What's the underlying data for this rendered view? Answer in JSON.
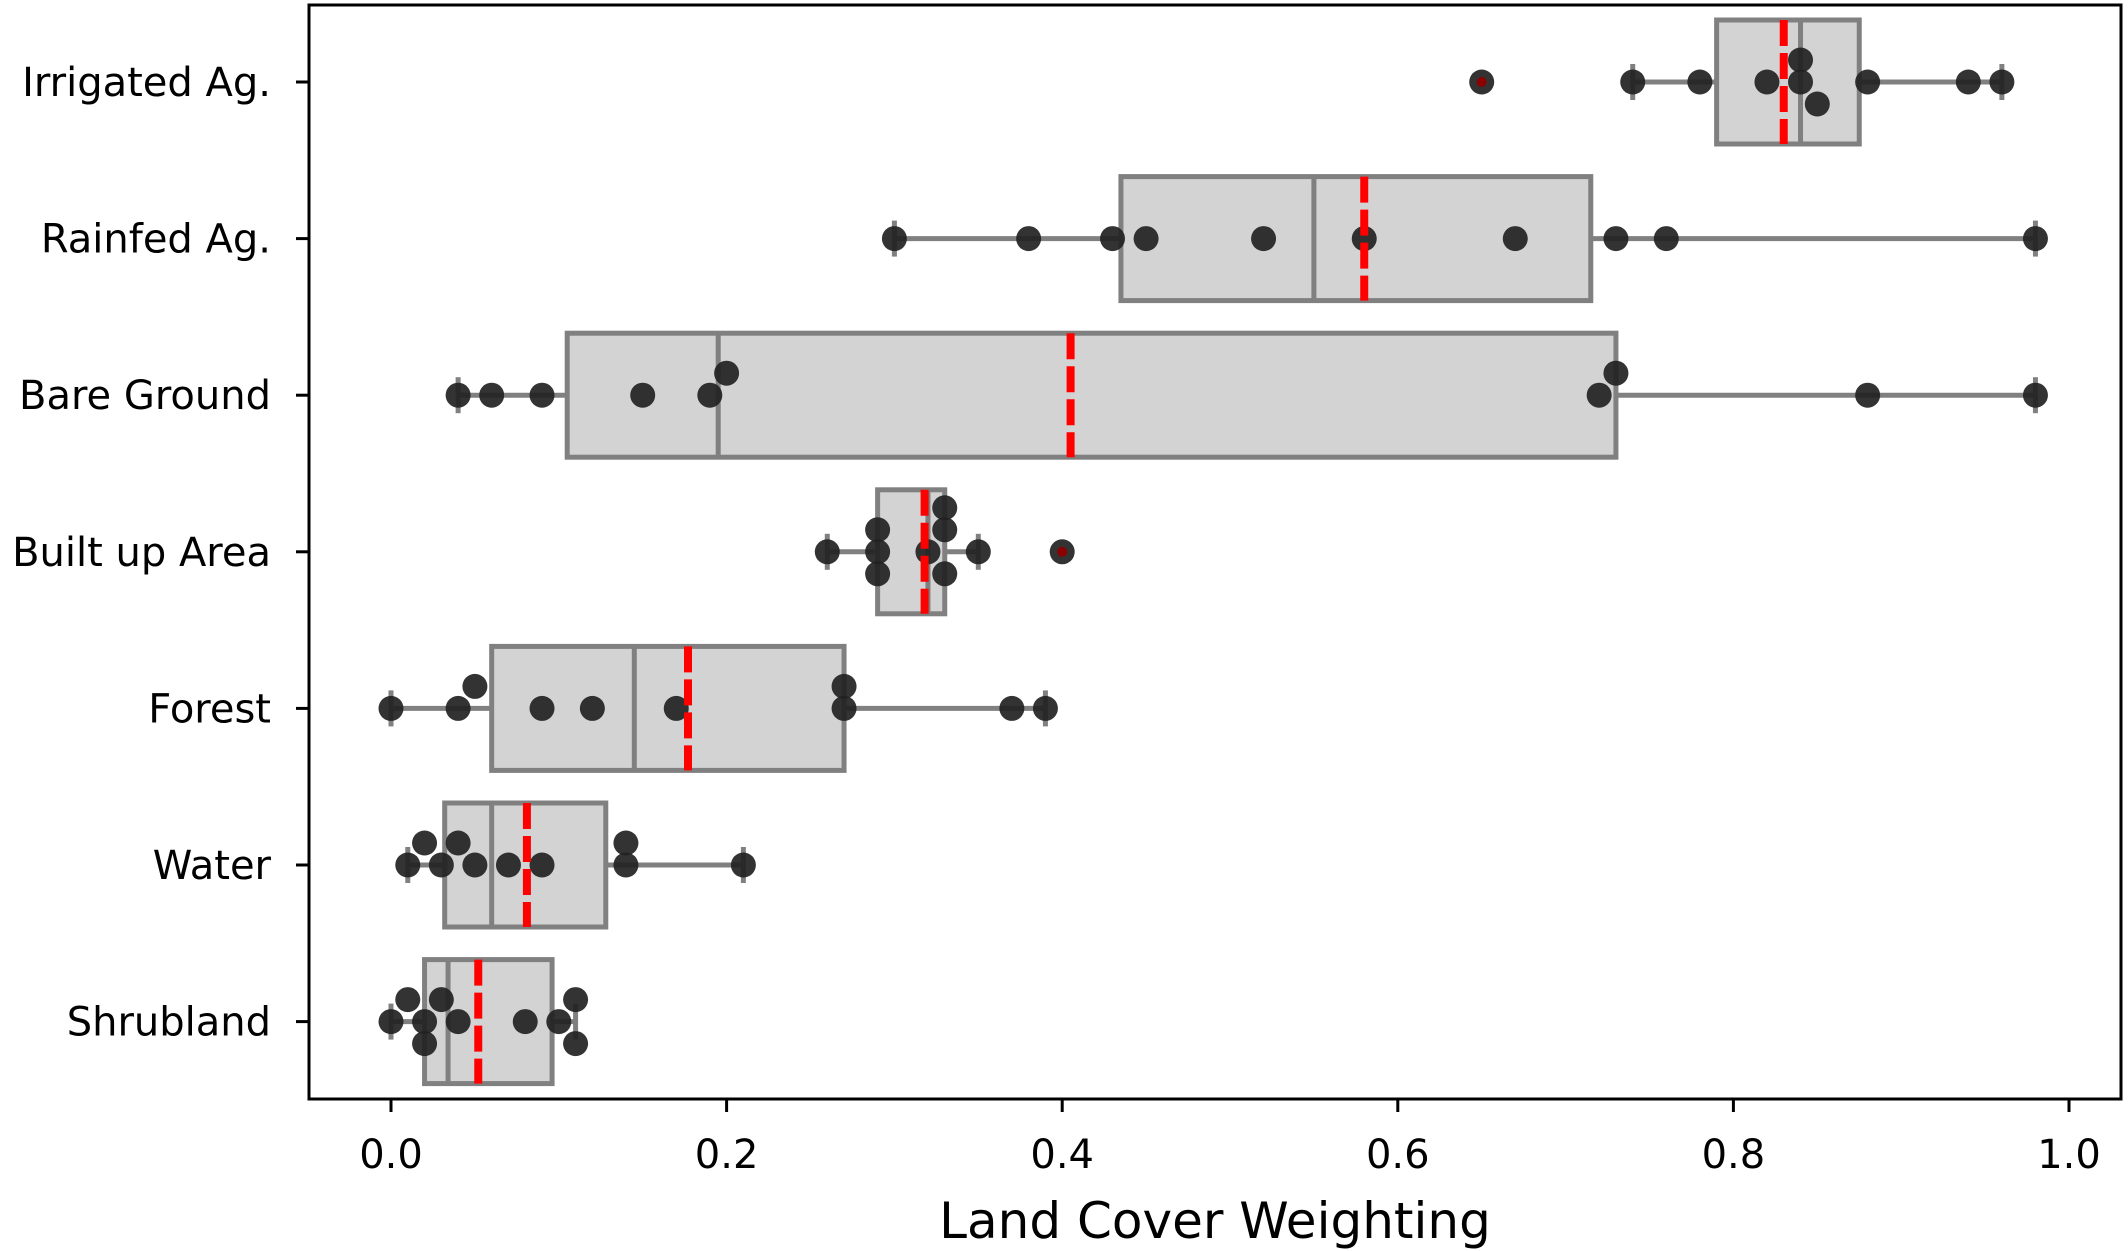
{
  "chart_data": {
    "type": "boxplot",
    "xlabel": "Land Cover Weighting",
    "ylabel": "",
    "title": "",
    "xlim": [
      -0.05,
      1.03
    ],
    "xticks": [
      0.0,
      0.2,
      0.4,
      0.6,
      0.8,
      1.0
    ],
    "xtick_labels": [
      "0.0",
      "0.2",
      "0.4",
      "0.6",
      "0.8",
      "1.0"
    ],
    "orientation": "horizontal",
    "grid": false,
    "colors": {
      "box_fill": "#d3d3d3",
      "box_edge": "#808080",
      "point": "#222222",
      "mean_line": "#ff0000"
    },
    "categories": [
      {
        "name": "Irrigated Ag.",
        "whisker_low": 0.74,
        "q1": 0.79,
        "median": 0.84,
        "q3": 0.875,
        "whisker_high": 0.96,
        "mean": 0.83,
        "outliers": [
          0.65
        ],
        "points": [
          {
            "x": 0.65,
            "offset": 0
          },
          {
            "x": 0.74,
            "offset": 0
          },
          {
            "x": 0.78,
            "offset": 0
          },
          {
            "x": 0.82,
            "offset": 0
          },
          {
            "x": 0.84,
            "offset": -1
          },
          {
            "x": 0.84,
            "offset": 0
          },
          {
            "x": 0.85,
            "offset": 1
          },
          {
            "x": 0.88,
            "offset": 0
          },
          {
            "x": 0.94,
            "offset": 0
          },
          {
            "x": 0.96,
            "offset": 0
          }
        ]
      },
      {
        "name": "Rainfed Ag.",
        "whisker_low": 0.3,
        "q1": 0.435,
        "median": 0.55,
        "q3": 0.715,
        "whisker_high": 0.98,
        "mean": 0.58,
        "outliers": [],
        "points": [
          {
            "x": 0.3,
            "offset": 0
          },
          {
            "x": 0.38,
            "offset": 0
          },
          {
            "x": 0.43,
            "offset": 0
          },
          {
            "x": 0.45,
            "offset": 0
          },
          {
            "x": 0.52,
            "offset": 0
          },
          {
            "x": 0.58,
            "offset": 0
          },
          {
            "x": 0.67,
            "offset": 0
          },
          {
            "x": 0.73,
            "offset": 0
          },
          {
            "x": 0.76,
            "offset": 0
          },
          {
            "x": 0.98,
            "offset": 0
          }
        ]
      },
      {
        "name": "Bare Ground",
        "whisker_low": 0.04,
        "q1": 0.105,
        "median": 0.195,
        "q3": 0.73,
        "whisker_high": 0.98,
        "mean": 0.405,
        "outliers": [],
        "points": [
          {
            "x": 0.04,
            "offset": 0
          },
          {
            "x": 0.06,
            "offset": 0
          },
          {
            "x": 0.09,
            "offset": 0
          },
          {
            "x": 0.15,
            "offset": 0
          },
          {
            "x": 0.19,
            "offset": 0
          },
          {
            "x": 0.2,
            "offset": -1
          },
          {
            "x": 0.72,
            "offset": 0
          },
          {
            "x": 0.73,
            "offset": -1
          },
          {
            "x": 0.88,
            "offset": 0
          },
          {
            "x": 0.98,
            "offset": 0
          }
        ]
      },
      {
        "name": "Built up Area",
        "whisker_low": 0.26,
        "q1": 0.29,
        "median": 0.32,
        "q3": 0.33,
        "whisker_high": 0.35,
        "mean": 0.318,
        "outliers": [
          0.4
        ],
        "points": [
          {
            "x": 0.26,
            "offset": 0
          },
          {
            "x": 0.29,
            "offset": -1
          },
          {
            "x": 0.29,
            "offset": 0
          },
          {
            "x": 0.29,
            "offset": 1
          },
          {
            "x": 0.32,
            "offset": 0
          },
          {
            "x": 0.33,
            "offset": -2
          },
          {
            "x": 0.33,
            "offset": -1
          },
          {
            "x": 0.33,
            "offset": 1
          },
          {
            "x": 0.35,
            "offset": 0
          },
          {
            "x": 0.4,
            "offset": 0
          }
        ]
      },
      {
        "name": "Forest",
        "whisker_low": 0.0,
        "q1": 0.06,
        "median": 0.145,
        "q3": 0.27,
        "whisker_high": 0.39,
        "mean": 0.177,
        "outliers": [],
        "points": [
          {
            "x": 0.0,
            "offset": 0
          },
          {
            "x": 0.04,
            "offset": 0
          },
          {
            "x": 0.05,
            "offset": -1
          },
          {
            "x": 0.09,
            "offset": 0
          },
          {
            "x": 0.12,
            "offset": 0
          },
          {
            "x": 0.17,
            "offset": 0
          },
          {
            "x": 0.27,
            "offset": -1
          },
          {
            "x": 0.27,
            "offset": 0
          },
          {
            "x": 0.37,
            "offset": 0
          },
          {
            "x": 0.39,
            "offset": 0
          }
        ]
      },
      {
        "name": "Water",
        "whisker_low": 0.01,
        "q1": 0.032,
        "median": 0.06,
        "q3": 0.128,
        "whisker_high": 0.21,
        "mean": 0.081,
        "outliers": [],
        "points": [
          {
            "x": 0.01,
            "offset": 0
          },
          {
            "x": 0.02,
            "offset": -1
          },
          {
            "x": 0.03,
            "offset": 0
          },
          {
            "x": 0.04,
            "offset": -1
          },
          {
            "x": 0.05,
            "offset": 0
          },
          {
            "x": 0.07,
            "offset": 0
          },
          {
            "x": 0.09,
            "offset": 0
          },
          {
            "x": 0.14,
            "offset": -1
          },
          {
            "x": 0.14,
            "offset": 0
          },
          {
            "x": 0.21,
            "offset": 0
          }
        ]
      },
      {
        "name": "Shrubland",
        "whisker_low": 0.0,
        "q1": 0.02,
        "median": 0.034,
        "q3": 0.096,
        "whisker_high": 0.11,
        "mean": 0.052,
        "outliers": [],
        "points": [
          {
            "x": 0.0,
            "offset": 0
          },
          {
            "x": 0.01,
            "offset": -1
          },
          {
            "x": 0.02,
            "offset": 0
          },
          {
            "x": 0.02,
            "offset": 1
          },
          {
            "x": 0.03,
            "offset": -1
          },
          {
            "x": 0.04,
            "offset": 0
          },
          {
            "x": 0.08,
            "offset": 0
          },
          {
            "x": 0.1,
            "offset": 0
          },
          {
            "x": 0.11,
            "offset": -1
          },
          {
            "x": 0.11,
            "offset": 1
          }
        ]
      }
    ]
  }
}
